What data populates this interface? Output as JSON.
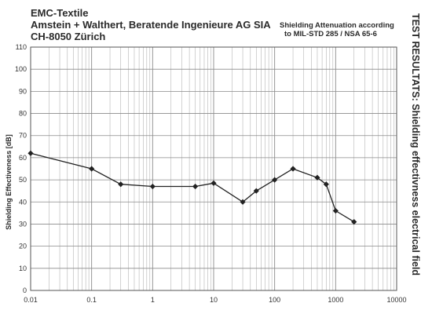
{
  "header": {
    "line1": "EMC-Textile",
    "line2": "Amstein + Walthert, Beratende Ingenieure AG SIA",
    "line3": "CH-8050 Zürich",
    "standard_line1": "Shielding Attenuation according",
    "standard_line2": "to MIL-STD 285 / NSA 65-6"
  },
  "side_title": "TEST RESULTATS: Shielding effectivness electrical field",
  "chart_data": {
    "type": "line",
    "title": "",
    "xlabel": "",
    "ylabel": "Shielding Effectiveness [dB]",
    "x_scale": "log",
    "xlim": [
      0.01,
      10000
    ],
    "ylim": [
      0,
      110
    ],
    "y_ticks": [
      0,
      10,
      20,
      30,
      40,
      50,
      60,
      70,
      80,
      90,
      100,
      110
    ],
    "x_ticks": [
      0.01,
      0.1,
      1,
      10,
      100,
      1000,
      10000
    ],
    "x_tick_labels": [
      "0.01",
      "0.1",
      "1",
      "10",
      "100",
      "1000",
      "10000"
    ],
    "grid": true,
    "series": [
      {
        "x": [
          0.01,
          0.1,
          0.3,
          1,
          5,
          10,
          30,
          50,
          100,
          200,
          500,
          700,
          1000,
          2000
        ],
        "y": [
          62,
          55,
          48,
          47,
          47,
          48.5,
          40,
          45,
          50,
          55,
          51,
          48,
          36,
          31
        ]
      }
    ],
    "marker": "diamond",
    "line_color": "#222222"
  }
}
